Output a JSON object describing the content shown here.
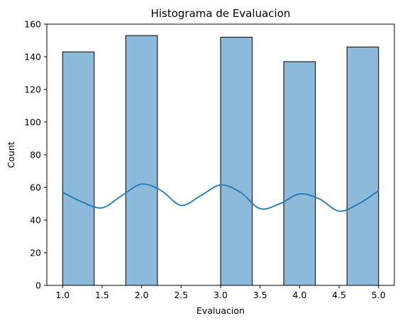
{
  "chart_data": {
    "type": "bar",
    "title": "Histograma de Evaluacion",
    "xlabel": "Evaluacion",
    "ylabel": "Count",
    "xlim": [
      0.8,
      5.2
    ],
    "ylim": [
      0,
      160
    ],
    "bin_width": 0.4,
    "bins": [
      {
        "start": 1.0,
        "end": 1.4,
        "count": 143
      },
      {
        "start": 1.4,
        "end": 1.8,
        "count": 0
      },
      {
        "start": 1.8,
        "end": 2.2,
        "count": 153
      },
      {
        "start": 2.2,
        "end": 2.6,
        "count": 0
      },
      {
        "start": 2.6,
        "end": 3.0,
        "count": 0
      },
      {
        "start": 3.0,
        "end": 3.4,
        "count": 152
      },
      {
        "start": 3.4,
        "end": 3.8,
        "count": 0
      },
      {
        "start": 3.8,
        "end": 4.2,
        "count": 137
      },
      {
        "start": 4.2,
        "end": 4.6,
        "count": 0
      },
      {
        "start": 4.6,
        "end": 5.0,
        "count": 146
      }
    ],
    "kde": {
      "x": [
        1.0,
        1.25,
        1.5,
        1.75,
        2.0,
        2.25,
        2.5,
        2.75,
        3.0,
        3.25,
        3.5,
        3.75,
        4.0,
        4.25,
        4.5,
        4.75,
        5.0
      ],
      "y": [
        57,
        51,
        47.5,
        55,
        62,
        58,
        49,
        55,
        61.5,
        57,
        47,
        50,
        56,
        53,
        45.5,
        50,
        58
      ]
    },
    "x_ticks": [
      1.0,
      1.5,
      2.0,
      2.5,
      3.0,
      3.5,
      4.0,
      4.5,
      5.0
    ],
    "x_tick_labels": [
      "1.0",
      "1.5",
      "2.0",
      "2.5",
      "3.0",
      "3.5",
      "4.0",
      "4.5",
      "5.0"
    ],
    "y_ticks": [
      0,
      20,
      40,
      60,
      80,
      100,
      120,
      140,
      160
    ],
    "y_tick_labels": [
      "0",
      "20",
      "40",
      "60",
      "80",
      "100",
      "120",
      "140",
      "160"
    ],
    "colors": {
      "bar_fill": "#8dbadb",
      "bar_edge": "#000000",
      "kde_line": "#1f77b4"
    },
    "grid": false,
    "legend": "none"
  }
}
